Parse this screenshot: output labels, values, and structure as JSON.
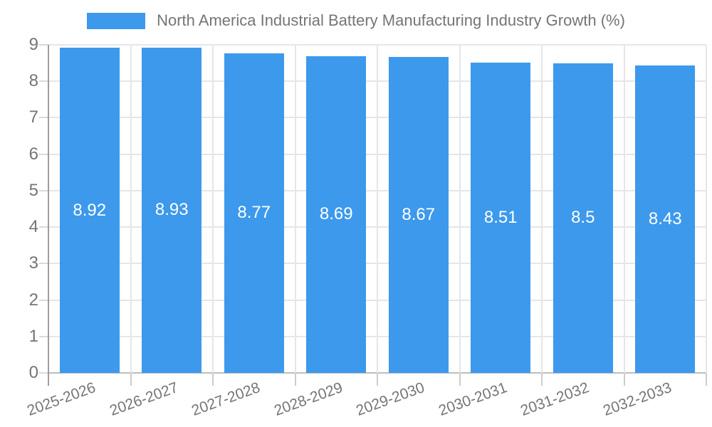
{
  "legend": {
    "label": "North America Industrial Battery Manufacturing Industry Growth (%)"
  },
  "chart_data": {
    "type": "bar",
    "title": "North America Industrial Battery Manufacturing Industry Growth (%)",
    "categories": [
      "2025-2026",
      "2026-2027",
      "2027-2028",
      "2028-2029",
      "2029-2030",
      "2030-2031",
      "2031-2032",
      "2032-2033"
    ],
    "values": [
      8.92,
      8.93,
      8.77,
      8.69,
      8.67,
      8.51,
      8.5,
      8.43
    ],
    "value_labels": [
      "8.92",
      "8.93",
      "8.77",
      "8.69",
      "8.67",
      "8.51",
      "8.5",
      "8.43"
    ],
    "xlabel": "",
    "ylabel": "",
    "ylim": [
      0,
      9
    ],
    "y_tick_labels": [
      "0",
      "1",
      "2",
      "3",
      "4",
      "5",
      "6",
      "7",
      "8",
      "9"
    ],
    "grid": true,
    "legend_position": "top",
    "colors": {
      "bar": "#3c99ec",
      "grid": "#e6e6e6",
      "axis": "#9e9e9e",
      "baseline": "#bdbdbd",
      "x_tick": "#cccccc",
      "y_tick": "#d9d9d9",
      "text": "#757575",
      "value_label": "#ffffff",
      "background": "#ffffff"
    }
  }
}
